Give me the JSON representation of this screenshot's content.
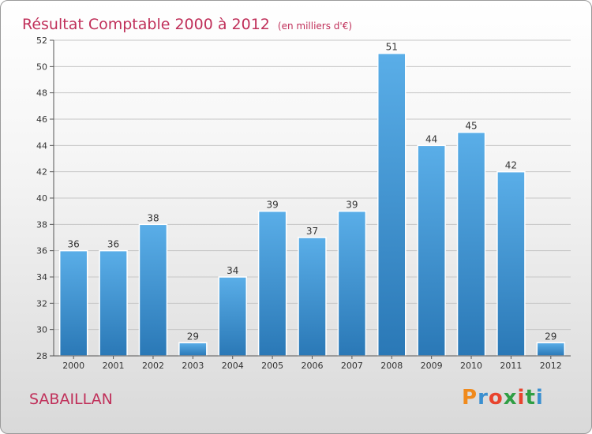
{
  "colors": {
    "bar_top": "#5aaee8",
    "bar_bottom": "#2a78b6",
    "title": "#c0305a",
    "grid": "#c6c6c6"
  },
  "header": {
    "title": "Résultat Comptable 2000 à 2012",
    "unit": "(en milliers d'€)"
  },
  "footer": {
    "commune": "SABAILLAN",
    "logo_text": "Proxiti"
  },
  "chart_data": {
    "type": "bar",
    "title": "Résultat Comptable 2000 à 2012",
    "subtitle": "(en milliers d'€)",
    "xlabel": "",
    "ylabel": "",
    "categories": [
      "2000",
      "2001",
      "2002",
      "2003",
      "2004",
      "2005",
      "2006",
      "2007",
      "2008",
      "2009",
      "2010",
      "2011",
      "2012"
    ],
    "values": [
      36,
      36,
      38,
      29,
      34,
      39,
      37,
      39,
      51,
      44,
      45,
      42,
      29
    ],
    "ylim": [
      28,
      52
    ],
    "yticks": [
      28,
      30,
      32,
      34,
      36,
      38,
      40,
      42,
      44,
      46,
      48,
      50,
      52
    ],
    "grid": true,
    "data_labels": true
  }
}
